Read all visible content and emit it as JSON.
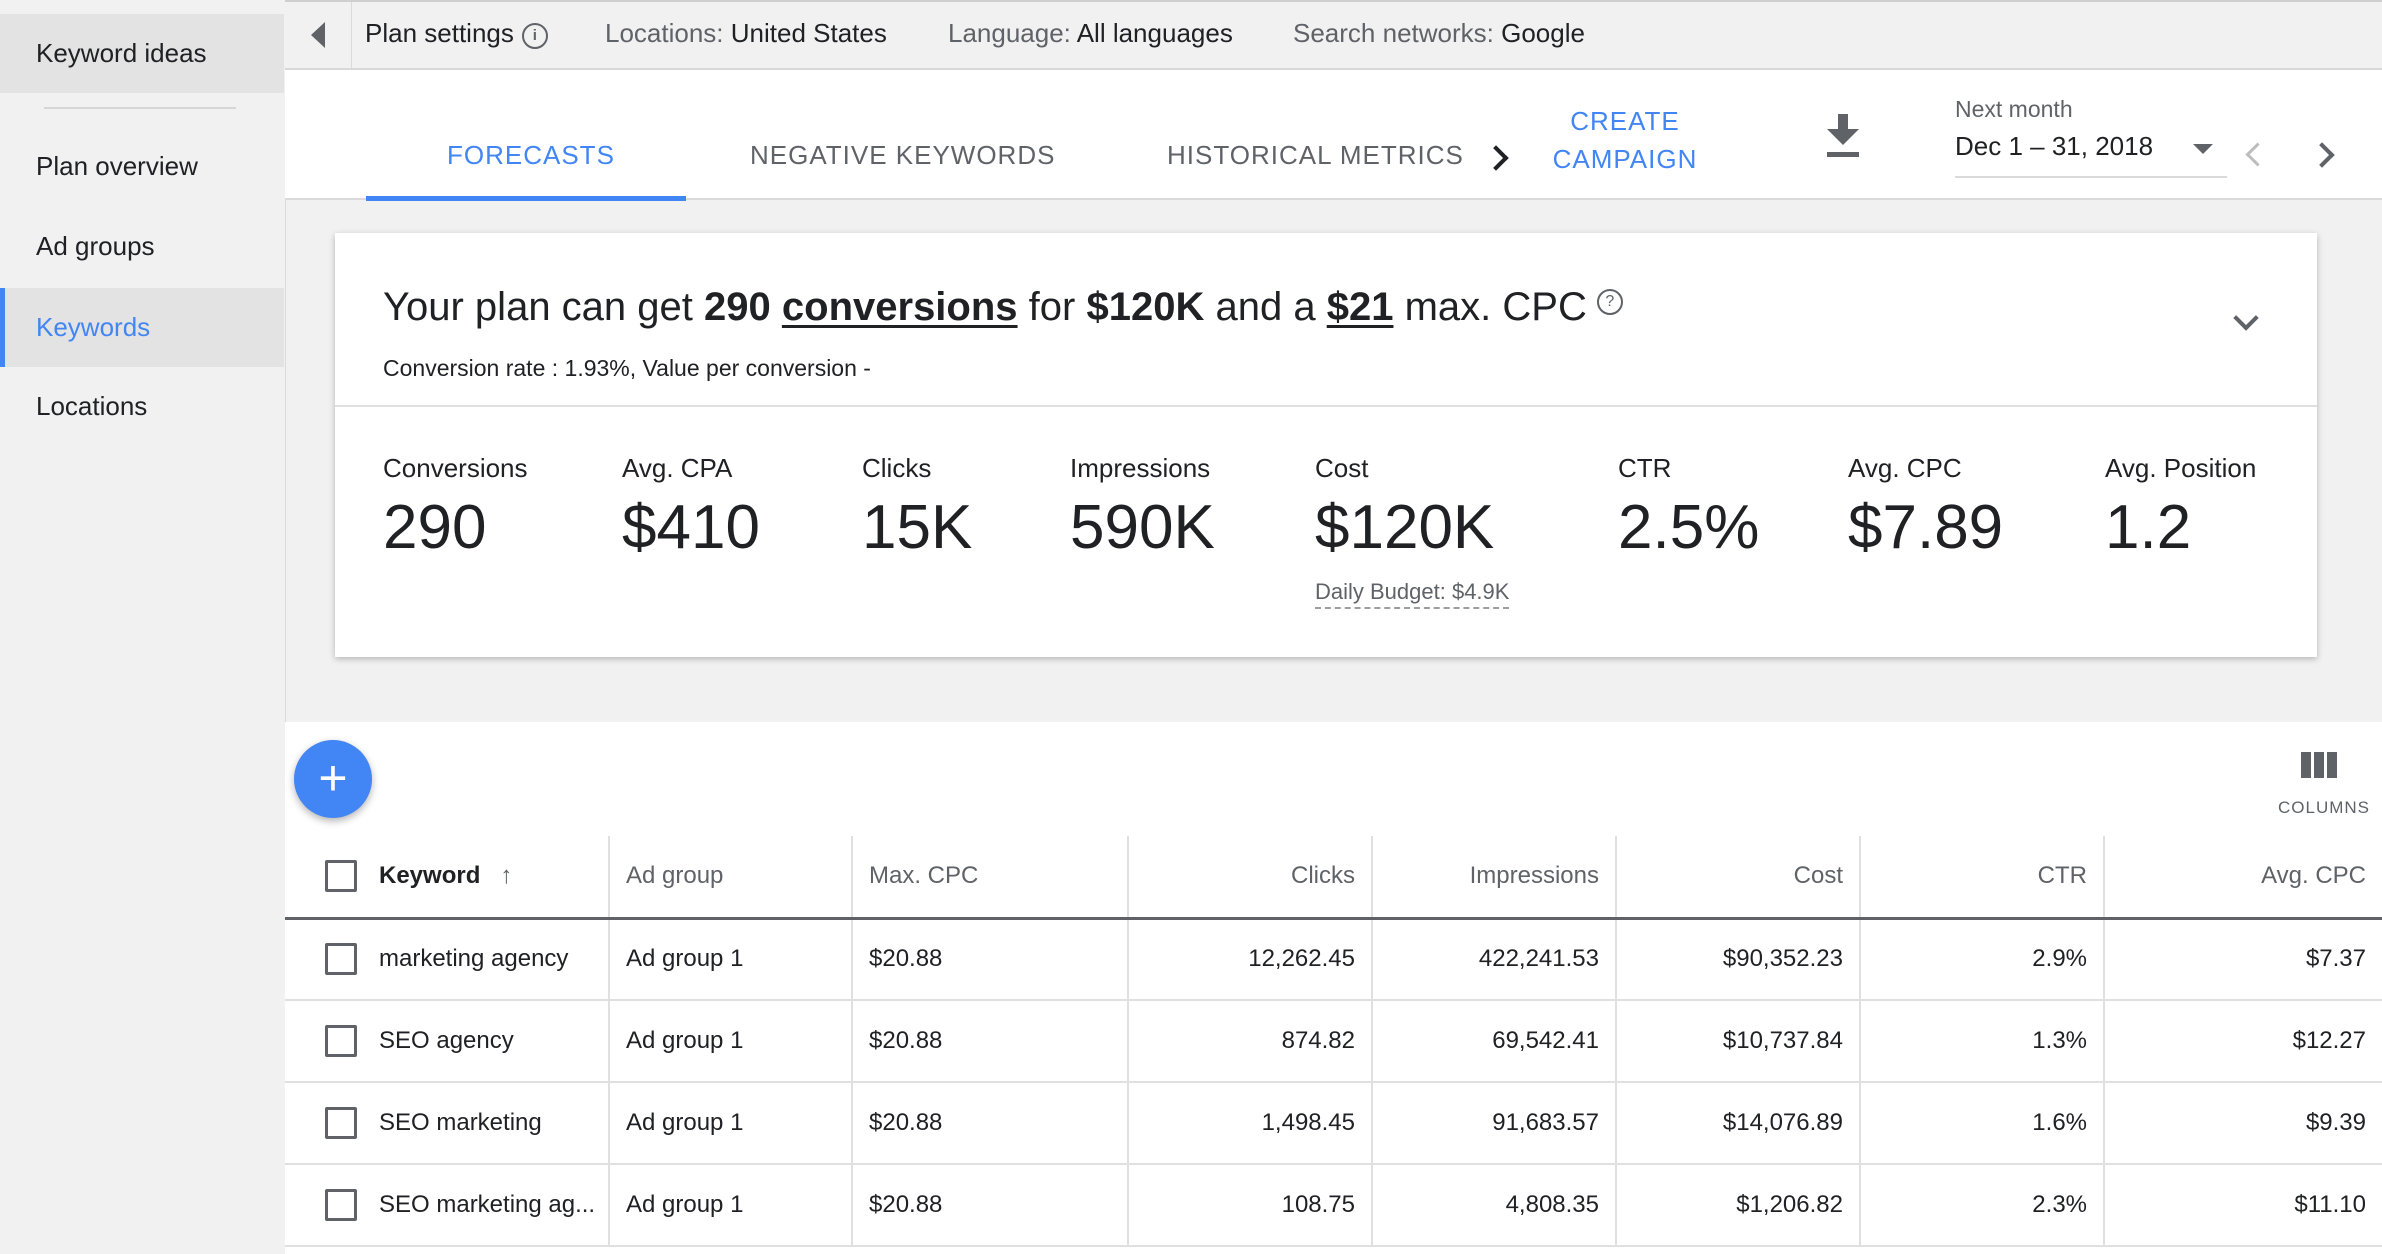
{
  "sidebar": {
    "items": [
      {
        "label": "Keyword ideas"
      },
      {
        "label": "Plan overview"
      },
      {
        "label": "Ad groups"
      },
      {
        "label": "Keywords"
      },
      {
        "label": "Locations"
      }
    ],
    "active": "Keywords"
  },
  "settings": {
    "title": "Plan settings",
    "locations_label": "Locations:",
    "locations_value": "United States",
    "language_label": "Language:",
    "language_value": "All languages",
    "networks_label": "Search networks:",
    "networks_value": "Google"
  },
  "tabs": [
    {
      "label": "FORECASTS",
      "active": true
    },
    {
      "label": "NEGATIVE KEYWORDS",
      "active": false
    },
    {
      "label": "HISTORICAL METRICS",
      "active": false
    }
  ],
  "toolbar": {
    "create_line1": "CREATE",
    "create_line2": "CAMPAIGN",
    "date_sub": "Next month",
    "date_value": "Dec 1 – 31, 2018"
  },
  "summary": {
    "prefix": "Your plan can get",
    "conversions": "290",
    "conversions_word": "conversions",
    "for": "for",
    "cost": "$120K",
    "and_a": "and a",
    "max_cpc": "$21",
    "suffix": "max. CPC",
    "subline": "Conversion rate : 1.93%, Value per conversion -",
    "metrics": [
      {
        "label": "Conversions",
        "value": "290"
      },
      {
        "label": "Avg. CPA",
        "value": "$410"
      },
      {
        "label": "Clicks",
        "value": "15K"
      },
      {
        "label": "Impressions",
        "value": "590K"
      },
      {
        "label": "Cost",
        "value": "$120K"
      },
      {
        "label": "CTR",
        "value": "2.5%"
      },
      {
        "label": "Avg. CPC",
        "value": "$7.89"
      },
      {
        "label": "Avg. Position",
        "value": "1.2"
      }
    ],
    "daily_budget": "Daily Budget: $4.9K"
  },
  "table": {
    "columns_label": "COLUMNS",
    "headers": [
      "Keyword",
      "Ad group",
      "Max. CPC",
      "Clicks",
      "Impressions",
      "Cost",
      "CTR",
      "Avg. CPC"
    ],
    "rows": [
      [
        "marketing agency",
        "Ad group 1",
        "$20.88",
        "12,262.45",
        "422,241.53",
        "$90,352.23",
        "2.9%",
        "$7.37"
      ],
      [
        "SEO agency",
        "Ad group 1",
        "$20.88",
        "874.82",
        "69,542.41",
        "$10,737.84",
        "1.3%",
        "$12.27"
      ],
      [
        "SEO marketing",
        "Ad group 1",
        "$20.88",
        "1,498.45",
        "91,683.57",
        "$14,076.89",
        "1.6%",
        "$9.39"
      ],
      [
        "SEO marketing ag...",
        "Ad group 1",
        "$20.88",
        "108.75",
        "4,808.35",
        "$1,206.82",
        "2.3%",
        "$11.10"
      ]
    ]
  },
  "colors": {
    "accent": "#4285f4",
    "text": "#202124",
    "muted": "#5f6368",
    "sidebar_bg": "#f1f1f1"
  }
}
